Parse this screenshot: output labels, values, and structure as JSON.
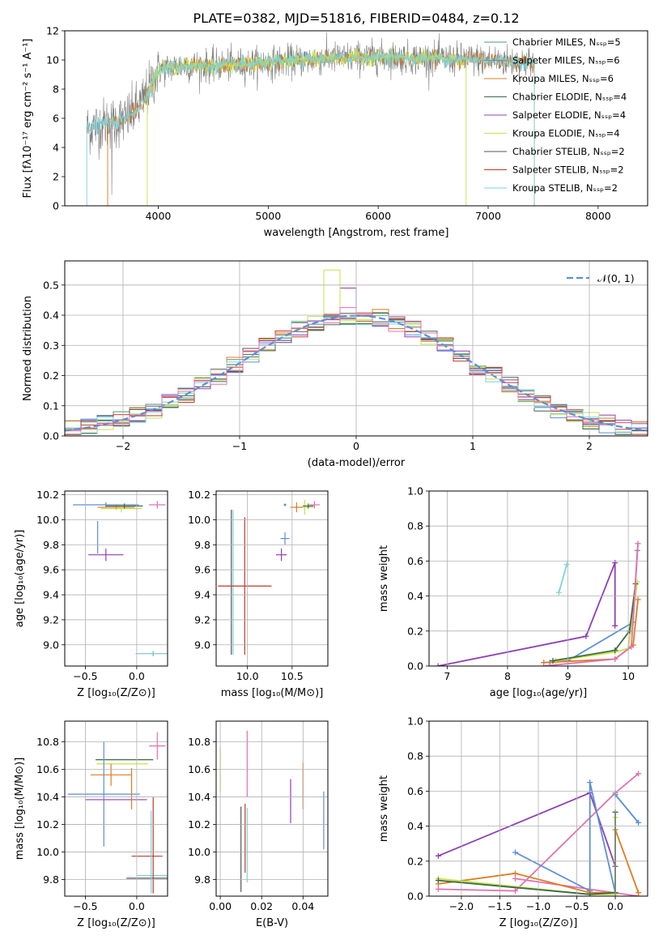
{
  "title": "PLATE=0382, MJD=51816, FIBERID=0484, z=0.12",
  "colors": {
    "chabrier_miles": "#4c9a6e",
    "salpeter_miles": "#5b8fd6",
    "kroupa_miles": "#e07b20",
    "chabrier_elodie": "#3d6b45",
    "salpeter_elodie": "#8e3fb5",
    "kroupa_elodie": "#c7e04a",
    "chabrier_stelib": "#555555",
    "salpeter_stelib": "#c0392b",
    "kroupa_stelib": "#7fd3d8",
    "pink": "#e36fb0",
    "normal_curve": "#5b8fd6",
    "grid": "#b0b0b0"
  },
  "chart_data": [
    {
      "id": "spectrum",
      "type": "line",
      "title": "PLATE=0382, MJD=51816, FIBERID=0484, z=0.12",
      "xlabel": "wavelength [Angstrom, rest frame]",
      "ylabel": "Flux [fλ10⁻¹⁷ erg cm⁻² s⁻¹ A⁻¹]",
      "xlim": [
        3150,
        8450
      ],
      "ylim": [
        0,
        12
      ],
      "xticks": [
        "4000",
        "5000",
        "6000",
        "7000",
        "8000"
      ],
      "yticks": [
        "0",
        "2",
        "4",
        "6",
        "8",
        "10",
        "12"
      ],
      "grid": false,
      "legend_position": "top-right",
      "legend": [
        "Chabrier MILES, Nₛₛₚ=5",
        "Salpeter MILES, Nₛₛₚ=6",
        "Kroupa MILES, Nₛₛₚ=6",
        "Chabrier ELODIE, Nₛₛₚ=4",
        "Salpeter ELODIE, Nₛₛₚ=4",
        "Kroupa ELODIE, Nₛₛₚ=4",
        "Chabrier STELIB, Nₛₛₚ=2",
        "Salpeter STELIB, Nₛₛₚ=2",
        "Kroupa STELIB, Nₛₛₚ=2"
      ],
      "data_range": [
        3350,
        7420
      ],
      "model_range_miles": [
        3540,
        7420
      ],
      "model_range_elodie": [
        3900,
        6800
      ],
      "model_range_stelib": [
        3350,
        7420
      ],
      "continuum": [
        [
          3350,
          5.3
        ],
        [
          3500,
          5.6
        ],
        [
          3700,
          5.9
        ],
        [
          3850,
          7.0
        ],
        [
          4000,
          9.3
        ],
        [
          4200,
          9.6
        ],
        [
          4500,
          9.6
        ],
        [
          5000,
          9.8
        ],
        [
          5500,
          10.1
        ],
        [
          6000,
          10.2
        ],
        [
          6500,
          10.1
        ],
        [
          7000,
          10.0
        ],
        [
          7420,
          9.8
        ]
      ]
    },
    {
      "id": "residuals",
      "type": "histogram",
      "xlabel": "(data-model)/error",
      "ylabel": "Normed distribution",
      "xlim": [
        -2.5,
        2.5
      ],
      "ylim": [
        0,
        0.58
      ],
      "xticks": [
        "−2",
        "−1",
        "0",
        "1",
        "2"
      ],
      "yticks": [
        "0.0",
        "0.1",
        "0.2",
        "0.3",
        "0.4",
        "0.5"
      ],
      "grid": true,
      "legend": [
        "𝒩(0, 1)"
      ],
      "legend_position": "top-right",
      "bins": 36
    },
    {
      "id": "age_vs_z",
      "type": "scatter",
      "xlabel": "Z [log₁₀(Z/Z⊙)]",
      "ylabel": "age  [log₁₀(age/yr)]",
      "xlim": [
        -0.7,
        0.3
      ],
      "ylim": [
        8.83,
        10.23
      ],
      "xticks": [
        "−0.5",
        "0.0"
      ],
      "yticks": [
        "9.0",
        "9.2",
        "9.4",
        "9.6",
        "9.8",
        "10.0",
        "10.2"
      ],
      "grid": true,
      "points": [
        {
          "c": "salpeter_miles",
          "x": -0.3,
          "xe": 0.32,
          "y": 10.12,
          "ye": 0.02
        },
        {
          "c": "kroupa_miles",
          "x": -0.2,
          "xe": 0.18,
          "y": 10.1,
          "ye": 0.02
        },
        {
          "c": "salpeter_elodie",
          "x": -0.3,
          "xe": 0.17,
          "y": 9.72,
          "ye": 0.05
        },
        {
          "c": "kroupa_elodie",
          "x": -0.15,
          "xe": 0.2,
          "y": 10.09,
          "ye": 0.03
        },
        {
          "c": "chabrier_elodie",
          "x": -0.12,
          "xe": 0.18,
          "y": 10.11,
          "ye": 0.02
        },
        {
          "c": "pink",
          "x": 0.2,
          "xe": 0.08,
          "y": 10.12,
          "ye": 0.03
        },
        {
          "c": "chabrier_stelib",
          "x": 0.16,
          "xe": 0.17,
          "y": 8.93,
          "ye": 0.02
        },
        {
          "c": "kroupa_stelib",
          "x": 0.16,
          "xe": 0.17,
          "y": 8.93,
          "ye": 0.02
        },
        {
          "c": "salpeter_miles",
          "x": -0.38,
          "xe": 0.0,
          "y": 9.86,
          "ye": 0.13
        }
      ]
    },
    {
      "id": "age_vs_mass",
      "type": "scatter",
      "xlabel": "mass [log₁₀(M/M⊙)]",
      "ylabel": "",
      "xlim": [
        9.65,
        10.9
      ],
      "ylim": [
        8.83,
        10.23
      ],
      "xticks": [
        "10.0",
        "10.5"
      ],
      "yticks": [
        "9.0",
        "9.2",
        "9.4",
        "9.6",
        "9.8",
        "10.0",
        "10.2"
      ],
      "grid": true,
      "points": [
        {
          "c": "salpeter_miles",
          "x": 10.42,
          "xe": 0.0,
          "y": 10.12,
          "ye": 0.0
        },
        {
          "c": "pink",
          "x": 10.75,
          "xe": 0.06,
          "y": 10.12,
          "ye": 0.03
        },
        {
          "c": "kroupa_elodie",
          "x": 10.64,
          "xe": 0.1,
          "y": 10.1,
          "ye": 0.06
        },
        {
          "c": "kroupa_miles",
          "x": 10.55,
          "xe": 0.07,
          "y": 10.1,
          "ye": 0.04
        },
        {
          "c": "chabrier_elodie",
          "x": 10.68,
          "xe": 0.06,
          "y": 10.11,
          "ye": 0.02
        },
        {
          "c": "salpeter_elodie",
          "x": 10.38,
          "xe": 0.06,
          "y": 9.72,
          "ye": 0.05
        },
        {
          "c": "salpeter_miles",
          "x": 10.42,
          "xe": 0.05,
          "y": 9.85,
          "ye": 0.05
        },
        {
          "c": "chabrier_stelib",
          "x": 9.82,
          "xe": 0.0,
          "y": 9.5,
          "ye": 0.58
        },
        {
          "c": "kroupa_stelib",
          "x": 9.84,
          "xe": 0.0,
          "y": 9.5,
          "ye": 0.58
        },
        {
          "c": "salpeter_stelib",
          "x": 9.97,
          "xe": 0.3,
          "y": 9.47,
          "ye": 0.55
        }
      ]
    },
    {
      "id": "weight_vs_age",
      "type": "line",
      "xlabel": "age  [log₁₀(age/yr)]",
      "ylabel": "mass weight",
      "xlim": [
        6.7,
        10.32
      ],
      "ylim": [
        0,
        1
      ],
      "xticks": [
        "7",
        "8",
        "9",
        "10"
      ],
      "yticks": [
        "0.0",
        "0.2",
        "0.4",
        "0.6",
        "0.8",
        "1.0"
      ],
      "grid": true,
      "series": [
        {
          "c": "salpeter_elodie",
          "x": [
            6.85,
            9.3,
            9.78,
            9.78
          ],
          "y": [
            0.0,
            0.17,
            0.59,
            0.23
          ]
        },
        {
          "c": "kroupa_stelib",
          "x": [
            8.85,
            8.98
          ],
          "y": [
            0.42,
            0.58
          ]
        },
        {
          "c": "salpeter_miles",
          "x": [
            8.7,
            9.0,
            10.08,
            10.15
          ],
          "y": [
            0.02,
            0.03,
            0.25,
            0.66
          ]
        },
        {
          "c": "kroupa_miles",
          "x": [
            8.6,
            9.78,
            10.08,
            10.16
          ],
          "y": [
            0.02,
            0.04,
            0.12,
            0.38
          ]
        },
        {
          "c": "kroupa_elodie",
          "x": [
            8.8,
            9.78,
            10.0,
            10.15
          ],
          "y": [
            0.03,
            0.08,
            0.1,
            0.48
          ]
        },
        {
          "c": "chabrier_elodie",
          "x": [
            8.75,
            9.78,
            10.02,
            10.12
          ],
          "y": [
            0.03,
            0.09,
            0.2,
            0.47
          ]
        },
        {
          "c": "pink",
          "x": [
            8.6,
            9.78,
            10.05,
            10.16
          ],
          "y": [
            0.0,
            0.04,
            0.11,
            0.7
          ]
        }
      ]
    },
    {
      "id": "mass_vs_z",
      "type": "scatter",
      "xlabel": "Z [log₁₀(Z/Z⊙)]",
      "ylabel": "mass [log₁₀(M/M⊙)]",
      "xlim": [
        -0.7,
        0.3
      ],
      "ylim": [
        9.68,
        10.95
      ],
      "xticks": [
        "−0.5",
        "0.0"
      ],
      "yticks": [
        "9.8",
        "10.0",
        "10.2",
        "10.4",
        "10.6",
        "10.8"
      ],
      "grid": true,
      "points": [
        {
          "c": "pink",
          "x": 0.2,
          "xe": 0.08,
          "y": 10.77,
          "ye": 0.1
        },
        {
          "c": "chabrier_elodie",
          "x": -0.12,
          "xe": 0.28,
          "y": 10.67,
          "ye": 0.0
        },
        {
          "c": "kroupa_elodie",
          "x": -0.14,
          "xe": 0.25,
          "y": 10.64,
          "ye": 0.0
        },
        {
          "c": "kroupa_miles",
          "x": -0.25,
          "xe": 0.2,
          "y": 10.56,
          "ye": 0.08
        },
        {
          "c": "salpeter_miles",
          "x": -0.32,
          "xe": 0.35,
          "y": 10.42,
          "ye": 0.38
        },
        {
          "c": "salpeter_elodie",
          "x": -0.2,
          "xe": 0.3,
          "y": 10.38,
          "ye": 0.0
        },
        {
          "c": "salpeter_stelib",
          "x": 0.1,
          "xe": 0.15,
          "y": 9.97,
          "ye": 0.0
        },
        {
          "c": "chabrier_stelib",
          "x": 0.1,
          "xe": 0.2,
          "y": 9.81,
          "ye": 0.0
        },
        {
          "c": "kroupa_stelib",
          "x": 0.15,
          "xe": 0.15,
          "y": 9.83,
          "ye": 0.0
        },
        {
          "c": "salpeter_stelib",
          "x": 0.16,
          "xe": 0.0,
          "y": 10.05,
          "ye": 0.35
        },
        {
          "c": "kroupa_stelib",
          "x": 0.14,
          "xe": 0.0,
          "y": 10.0,
          "ye": 0.3
        },
        {
          "c": "kroupa_miles",
          "x": -0.05,
          "xe": 0.0,
          "y": 10.46,
          "ye": 0.15
        }
      ]
    },
    {
      "id": "mass_vs_ebv",
      "type": "scatter",
      "xlabel": "E(B-V)",
      "ylabel": "",
      "xlim": [
        -0.002,
        0.052
      ],
      "ylim": [
        9.68,
        10.95
      ],
      "xticks": [
        "0.00",
        "0.02",
        "0.04"
      ],
      "yticks": [
        "9.8",
        "10.0",
        "10.2",
        "10.4",
        "10.6",
        "10.8"
      ],
      "grid": true,
      "points": [
        {
          "c": "kroupa_elodie",
          "x": 0.0,
          "xe": 0.0,
          "y": 10.6,
          "ye": 0.16
        },
        {
          "c": "pink",
          "x": 0.013,
          "xe": 0.0,
          "y": 10.64,
          "ye": 0.24
        },
        {
          "c": "kroupa_miles",
          "x": 0.04,
          "xe": 0.0,
          "y": 10.48,
          "ye": 0.17
        },
        {
          "c": "salpeter_miles",
          "x": 0.05,
          "xe": 0.0,
          "y": 10.23,
          "ye": 0.21
        },
        {
          "c": "salpeter_elodie",
          "x": 0.034,
          "xe": 0.0,
          "y": 10.37,
          "ye": 0.16
        },
        {
          "c": "chabrier_stelib",
          "x": 0.01,
          "xe": 0.0,
          "y": 10.02,
          "ye": 0.31
        },
        {
          "c": "salpeter_stelib",
          "x": 0.012,
          "xe": 0.0,
          "y": 10.1,
          "ye": 0.25
        },
        {
          "c": "kroupa_stelib",
          "x": 0.013,
          "xe": 0.0,
          "y": 10.05,
          "ye": 0.27
        }
      ]
    },
    {
      "id": "weight_vs_z",
      "type": "line",
      "xlabel": "Z [log₁₀(Z/Z⊙)]",
      "ylabel": "mass weight",
      "xlim": [
        -2.42,
        0.42
      ],
      "ylim": [
        0,
        1
      ],
      "xticks": [
        "−2.0",
        "−1.5",
        "−1.0",
        "−0.5",
        "0.0"
      ],
      "yticks": [
        "0.0",
        "0.2",
        "0.4",
        "0.6",
        "0.8",
        "1.0"
      ],
      "grid": true,
      "series": [
        {
          "c": "salpeter_elodie",
          "x": [
            -2.3,
            -0.33,
            0.0
          ],
          "y": [
            0.23,
            0.59,
            0.17
          ]
        },
        {
          "c": "pink",
          "x": [
            -2.3,
            -1.3,
            0.0,
            0.3
          ],
          "y": [
            0.04,
            0.03,
            0.59,
            0.7
          ]
        },
        {
          "c": "pink",
          "x": [
            -1.3,
            0.3
          ],
          "y": [
            0.1,
            0.0
          ]
        },
        {
          "c": "salpeter_miles",
          "x": [
            -1.3,
            -0.33,
            -0.33,
            0.0
          ],
          "y": [
            0.25,
            0.03,
            0.65,
            0.02
          ]
        },
        {
          "c": "kroupa_miles",
          "x": [
            -2.3,
            -1.3,
            -0.33,
            0.0,
            0.0,
            0.3
          ],
          "y": [
            0.07,
            0.13,
            0.02,
            0.02,
            0.38,
            0.02
          ]
        },
        {
          "c": "kroupa_elodie",
          "x": [
            -2.3,
            -0.33,
            0.0,
            0.0
          ],
          "y": [
            0.1,
            0.01,
            0.01,
            0.45
          ]
        },
        {
          "c": "chabrier_elodie",
          "x": [
            -2.3,
            -0.33,
            0.0,
            0.0
          ],
          "y": [
            0.09,
            0.01,
            0.02,
            0.48
          ]
        },
        {
          "c": "kroupa_stelib",
          "x": [
            0.0,
            0.3
          ],
          "y": [
            0.58,
            0.42
          ]
        },
        {
          "c": "salpeter_miles",
          "x": [
            0.0,
            0.3
          ],
          "y": [
            0.58,
            0.42
          ]
        }
      ]
    }
  ]
}
